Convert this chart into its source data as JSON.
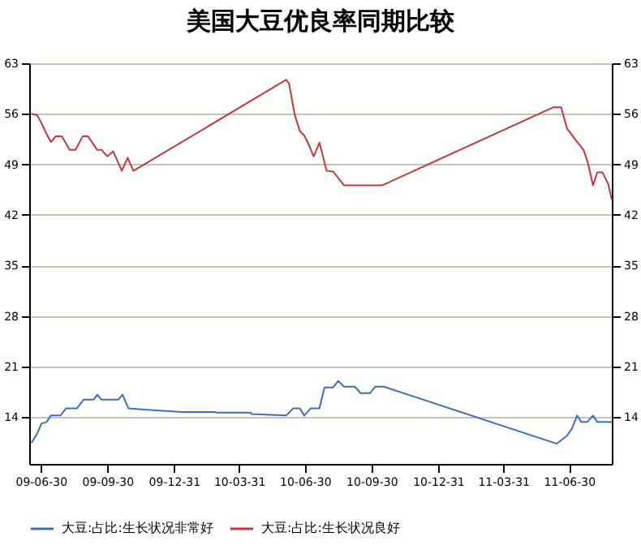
{
  "chart_data": {
    "type": "line",
    "title": "美国大豆优良率同期比较",
    "xlim": [
      "2009-06-14",
      "2011-08-28"
    ],
    "xticks": [
      {
        "value": "2009-06-30",
        "label": "09-06-30"
      },
      {
        "value": "2009-09-30",
        "label": "09-09-30"
      },
      {
        "value": "2009-12-31",
        "label": "09-12-31"
      },
      {
        "value": "2010-03-31",
        "label": "10-03-31"
      },
      {
        "value": "2010-06-30",
        "label": "10-06-30"
      },
      {
        "value": "2010-09-30",
        "label": "10-09-30"
      },
      {
        "value": "2010-12-31",
        "label": "10-12-31"
      },
      {
        "value": "2011-03-31",
        "label": "11-03-31"
      },
      {
        "value": "2011-06-30",
        "label": "11-06-30"
      }
    ],
    "ylim": [
      7.5,
      63
    ],
    "yticks": [
      14,
      21,
      28,
      35,
      42,
      49,
      56,
      63
    ],
    "y2lim": [
      7.5,
      63
    ],
    "y2ticks": [
      14,
      21,
      28,
      35,
      42,
      49,
      56,
      63
    ],
    "grid": "y",
    "legend": "bottom",
    "marker": "none",
    "line_style": "solid",
    "series": [
      {
        "name": "大豆:占比:生长状况非常好",
        "color": "#3c6fbf",
        "x": [
          "2009-06-17",
          "2009-06-25",
          "2009-07-01",
          "2009-07-08",
          "2009-07-14",
          "2009-07-27",
          "2009-08-04",
          "2009-08-19",
          "2009-08-28",
          "2009-09-11",
          "2009-09-16",
          "2009-09-22",
          "2009-10-15",
          "2009-10-21",
          "2009-10-29",
          "2009-11-24",
          "2010-01-11",
          "2010-02-25",
          "2010-03-01",
          "2010-04-16",
          "2010-04-17",
          "2010-06-04",
          "2010-06-14",
          "2010-06-23",
          "2010-06-29",
          "2010-07-08",
          "2010-07-20",
          "2010-07-27",
          "2010-08-08",
          "2010-08-15",
          "2010-08-23",
          "2010-09-07",
          "2010-09-15",
          "2010-09-28",
          "2010-10-05",
          "2010-10-17",
          "2011-06-13",
          "2011-06-27",
          "2011-07-04",
          "2011-07-11",
          "2011-07-17",
          "2011-07-25",
          "2011-08-02",
          "2011-08-08",
          "2011-08-28"
        ],
        "values": [
          10.4,
          11.7,
          13.1,
          13.3,
          14.2,
          14.2,
          15.2,
          15.2,
          16.4,
          16.4,
          17.1,
          16.4,
          16.4,
          17.1,
          15.2,
          15.0,
          14.7,
          14.7,
          14.6,
          14.6,
          14.4,
          14.2,
          15.2,
          15.2,
          14.2,
          15.2,
          15.2,
          18.1,
          18.1,
          19.0,
          18.2,
          18.2,
          17.3,
          17.3,
          18.2,
          18.2,
          10.3,
          11.4,
          12.4,
          14.2,
          13.3,
          13.3,
          14.2,
          13.3,
          13.3
        ]
      },
      {
        "name": "大豆:占比:生长状况良好",
        "color": "#c0393b",
        "x": [
          "2009-06-17",
          "2009-06-25",
          "2009-07-01",
          "2009-07-08",
          "2009-07-14",
          "2009-07-21",
          "2009-07-29",
          "2009-08-09",
          "2009-08-17",
          "2009-08-27",
          "2009-09-03",
          "2009-09-16",
          "2009-09-22",
          "2009-09-30",
          "2009-10-08",
          "2009-10-20",
          "2009-10-28",
          "2009-11-05",
          "2010-06-04",
          "2010-06-08",
          "2010-06-16",
          "2010-06-23",
          "2010-06-29",
          "2010-07-05",
          "2010-07-12",
          "2010-07-20",
          "2010-07-30",
          "2010-08-08",
          "2010-08-23",
          "2010-10-15",
          "2011-06-08",
          "2011-06-19",
          "2011-06-27",
          "2011-07-08",
          "2011-07-20",
          "2011-07-26",
          "2011-08-02",
          "2011-08-08",
          "2011-08-15",
          "2011-08-23",
          "2011-08-28"
        ],
        "values": [
          56,
          55.8,
          54.7,
          53.2,
          52.1,
          52.9,
          52.9,
          51,
          51,
          52.9,
          52.9,
          51,
          51,
          50.1,
          50.8,
          48.1,
          49.9,
          48.1,
          60.7,
          60.2,
          55.8,
          53.6,
          53,
          51.8,
          50.1,
          52,
          48.1,
          48,
          46.1,
          46.1,
          56.9,
          56.9,
          54,
          52.5,
          51,
          49.2,
          46.1,
          47.9,
          47.9,
          46.3,
          44.1
        ]
      }
    ]
  }
}
